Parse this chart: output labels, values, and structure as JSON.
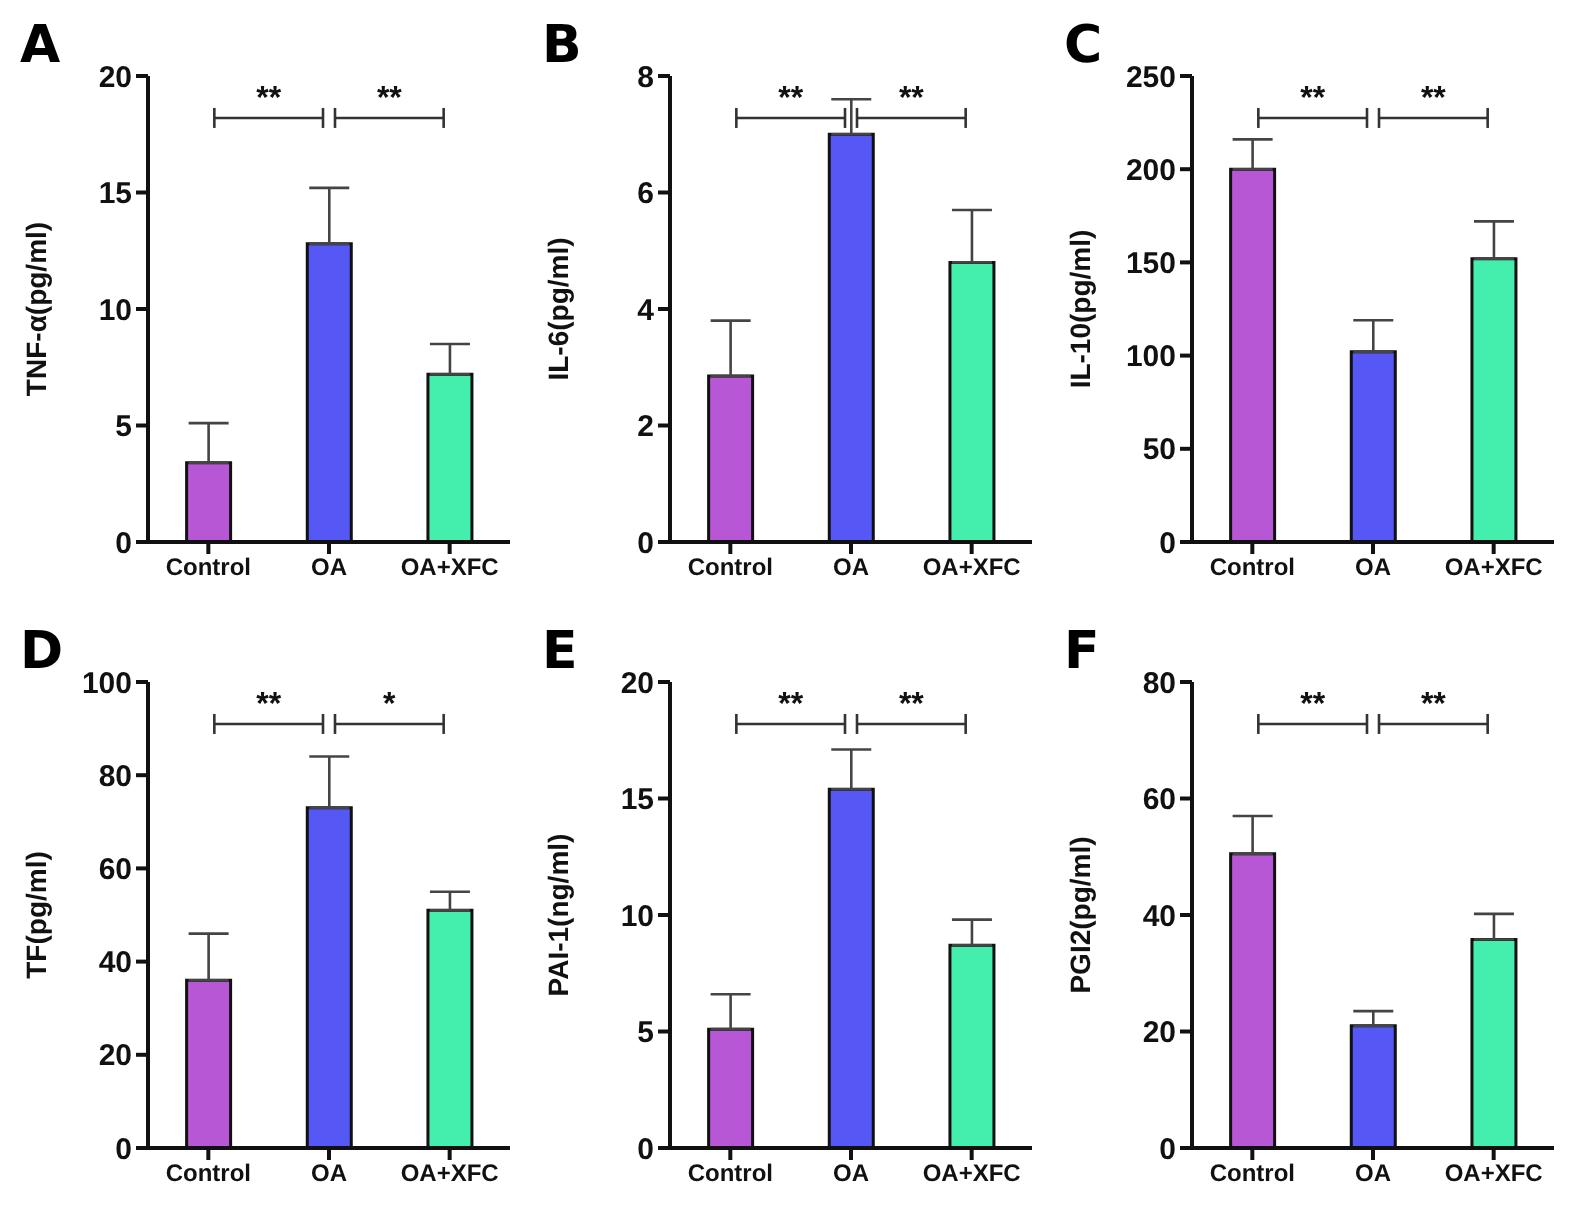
{
  "chart_data": [
    {
      "type": "bar",
      "title": "A",
      "ylabel": "TNF-α(pg/ml)",
      "categories": [
        "Control",
        "OA",
        "OA+XFC"
      ],
      "values": [
        3.4,
        12.8,
        7.2
      ],
      "errors": [
        [
          3.4,
          5.1
        ],
        [
          12.8,
          15.2
        ],
        [
          7.2,
          8.5
        ]
      ],
      "colors": [
        "#b857d6",
        "#5558f5",
        "#44eeac"
      ],
      "ylim": [
        0,
        20
      ],
      "yticks": [
        0,
        5,
        10,
        15,
        20
      ],
      "annotations": [
        "**",
        "**"
      ]
    },
    {
      "type": "bar",
      "title": "B",
      "ylabel": "IL-6(pg/ml)",
      "categories": [
        "Control",
        "OA",
        "OA+XFC"
      ],
      "values": [
        2.85,
        7.0,
        4.8
      ],
      "errors": [
        [
          2.85,
          3.8
        ],
        [
          7.0,
          7.6
        ],
        [
          4.8,
          5.7
        ]
      ],
      "colors": [
        "#b857d6",
        "#5558f5",
        "#44eeac"
      ],
      "ylim": [
        0,
        8
      ],
      "yticks": [
        0,
        2,
        4,
        6,
        8
      ],
      "annotations": [
        "**",
        "**"
      ]
    },
    {
      "type": "bar",
      "title": "C",
      "ylabel": "IL-10(pg/ml)",
      "categories": [
        "Control",
        "OA",
        "OA+XFC"
      ],
      "values": [
        200,
        102,
        152
      ],
      "errors": [
        [
          200,
          216
        ],
        [
          102,
          119
        ],
        [
          152,
          172
        ]
      ],
      "colors": [
        "#b857d6",
        "#5558f5",
        "#44eeac"
      ],
      "ylim": [
        0,
        250
      ],
      "yticks": [
        0,
        50,
        100,
        150,
        200,
        250
      ],
      "annotations": [
        "**",
        "**"
      ]
    },
    {
      "type": "bar",
      "title": "D",
      "ylabel": "TF(pg/ml)",
      "categories": [
        "Control",
        "OA",
        "OA+XFC"
      ],
      "values": [
        36,
        73,
        51
      ],
      "errors": [
        [
          36,
          46
        ],
        [
          73,
          84
        ],
        [
          51,
          55
        ]
      ],
      "colors": [
        "#b857d6",
        "#5558f5",
        "#44eeac"
      ],
      "ylim": [
        0,
        100
      ],
      "yticks": [
        0,
        20,
        40,
        60,
        80,
        100
      ],
      "annotations": [
        "**",
        "*"
      ]
    },
    {
      "type": "bar",
      "title": "E",
      "ylabel": "PAI-1(ng/ml)",
      "categories": [
        "Control",
        "OA",
        "OA+XFC"
      ],
      "values": [
        5.1,
        15.4,
        8.7
      ],
      "errors": [
        [
          5.1,
          6.6
        ],
        [
          15.4,
          17.1
        ],
        [
          8.7,
          9.8
        ]
      ],
      "colors": [
        "#b857d6",
        "#5558f5",
        "#44eeac"
      ],
      "ylim": [
        0,
        20
      ],
      "yticks": [
        0,
        5,
        10,
        15,
        20
      ],
      "annotations": [
        "**",
        "**"
      ]
    },
    {
      "type": "bar",
      "title": "F",
      "ylabel": "PGI2(pg/ml)",
      "categories": [
        "Control",
        "OA",
        "OA+XFC"
      ],
      "values": [
        50.5,
        21,
        35.8
      ],
      "errors": [
        [
          50.5,
          57
        ],
        [
          21,
          23.5
        ],
        [
          35.8,
          40.2
        ]
      ],
      "colors": [
        "#b857d6",
        "#5558f5",
        "#44eeac"
      ],
      "ylim": [
        0,
        80
      ],
      "yticks": [
        0,
        20,
        40,
        60,
        80
      ],
      "annotations": [
        "**",
        "**"
      ]
    }
  ]
}
